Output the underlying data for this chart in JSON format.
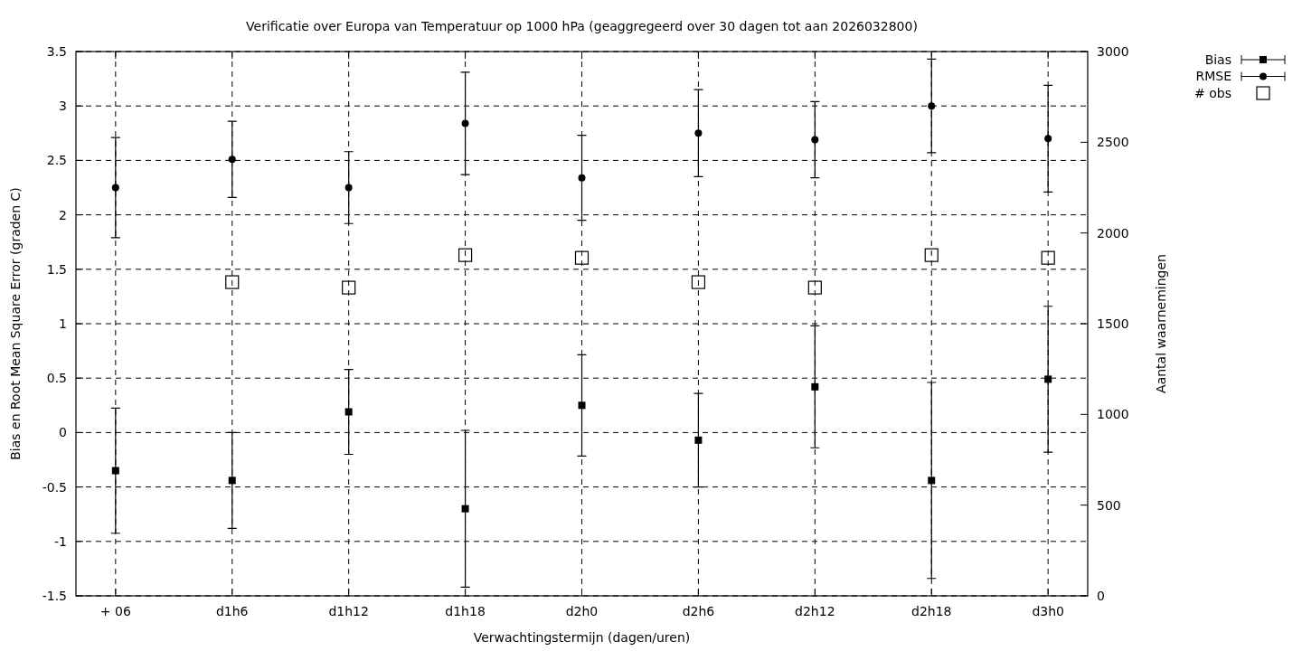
{
  "chart_data": {
    "type": "scatter",
    "title": "Verificatie over Europa van Temperatuur op 1000 hPa (geaggregeerd over 30 dagen tot aan 2026032800)",
    "xlabel": "Verwachtingstermijn (dagen/uren)",
    "ylabel": "Bias en Root Mean Square Error (graden C)",
    "y2label": "Aantal waarnemingen",
    "categories": [
      "+ 06",
      "d1h6",
      "d1h12",
      "d1h18",
      "d2h0",
      "d2h6",
      "d2h12",
      "d2h18",
      "d3h0"
    ],
    "series": [
      {
        "name": "Bias",
        "color": "#000000",
        "marker": "square",
        "values": [
          -0.35,
          -0.44,
          0.19,
          -0.7,
          0.25,
          -0.07,
          0.42,
          -0.44,
          0.49
        ],
        "errors": [
          0.575,
          0.44,
          0.39,
          0.72,
          0.465,
          0.43,
          0.56,
          0.9,
          0.67
        ]
      },
      {
        "name": "RMSE",
        "color": "#000000",
        "marker": "circle",
        "values": [
          2.25,
          2.51,
          2.25,
          2.84,
          2.34,
          2.75,
          2.69,
          3.0,
          2.7
        ],
        "errors": [
          0.46,
          0.35,
          0.33,
          0.47,
          0.39,
          0.4,
          0.35,
          0.43,
          0.49
        ]
      },
      {
        "name": "# obs",
        "color": "#000000",
        "marker": "square",
        "axis": "y2",
        "values": [
          null,
          1729,
          1699,
          1878,
          1863,
          1729,
          1699,
          1878,
          1863
        ]
      }
    ],
    "ylim": [
      -1.5,
      3.5
    ],
    "yticks": [
      {
        "value": -1.5,
        "label": "-1.5"
      },
      {
        "value": -1,
        "label": "-1"
      },
      {
        "value": -0.5,
        "label": "-0.5"
      },
      0,
      0.5,
      1,
      1.5,
      2,
      2.5,
      3,
      3.5
    ],
    "y2lim": [
      0,
      3000
    ],
    "y2ticks": [
      0,
      500,
      1000,
      1500,
      2000,
      2500,
      3000
    ],
    "grid": true,
    "legend": "top right"
  }
}
